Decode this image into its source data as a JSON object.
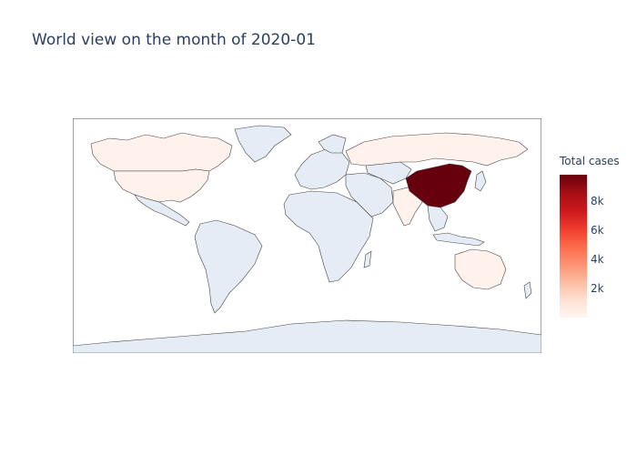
{
  "title": "World view on the month of 2020-01",
  "colorbar": {
    "title": "Total cases",
    "min": 0,
    "max": 9800,
    "ticks": [
      {
        "value": 2000,
        "label": "2k"
      },
      {
        "value": 4000,
        "label": "4k"
      },
      {
        "value": 6000,
        "label": "6k"
      },
      {
        "value": 8000,
        "label": "8k"
      }
    ],
    "colorscale": [
      "#fff5f0",
      "#fee0d2",
      "#fcbba1",
      "#fc9272",
      "#fb6a4a",
      "#ef3b2c",
      "#cb181d",
      "#a50f15",
      "#67000d"
    ]
  },
  "colors": {
    "land_default": "#e5ecf6",
    "border": "#444444",
    "frame": "#444444",
    "text": "#2a3f5f"
  },
  "chart_data": {
    "type": "choropleth",
    "title": "World view on the month of 2020-01",
    "metric": "Total cases",
    "highlighted_regions": [
      {
        "name": "China",
        "level": "max"
      },
      {
        "name": "United States",
        "level": "low"
      },
      {
        "name": "Canada",
        "level": "low"
      },
      {
        "name": "Russia",
        "level": "low"
      },
      {
        "name": "Australia",
        "level": "low"
      },
      {
        "name": "India",
        "level": "low"
      },
      {
        "name": "Europe",
        "level": "low"
      }
    ]
  }
}
